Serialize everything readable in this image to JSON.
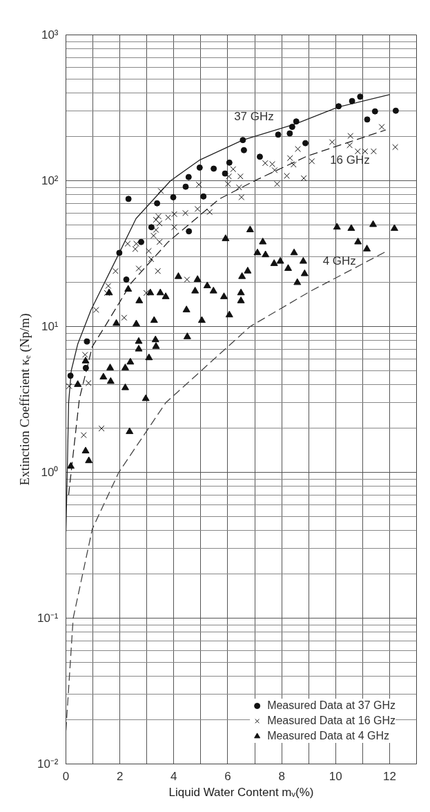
{
  "chart_data": {
    "type": "scatter",
    "xlabel": "Liquid Water Content mᵥ(%)",
    "ylabel": "Extinction Coefficient κₑ (Np/m)",
    "log": "y",
    "grid": true,
    "legend": "bottom right",
    "xlim": [
      0,
      13
    ],
    "xticks": [
      0,
      {
        "value": 1,
        "label": null
      },
      2,
      {
        "value": 3,
        "label": null
      },
      4,
      {
        "value": 5,
        "label": null
      },
      6,
      {
        "value": 7,
        "label": null
      },
      8,
      {
        "value": 9,
        "label": null
      },
      10,
      {
        "value": 11,
        "label": null
      },
      12,
      {
        "value": 13,
        "label": null
      }
    ],
    "ylim": [
      0.01,
      1000
    ],
    "yticks": [
      {
        "value": 0.01,
        "label": "10⁻²"
      },
      {
        "value": 0.1,
        "label": "10⁻¹"
      },
      {
        "value": 1,
        "label": "10⁰"
      },
      {
        "value": 10,
        "label": "10¹"
      },
      {
        "value": 100,
        "label": "10²"
      },
      {
        "value": 1000,
        "label": "10³"
      }
    ],
    "series": [
      {
        "name": "Measured Data at 37 GHz",
        "marker": "circle",
        "color": "#111111",
        "x": [
          6.56,
          6.6,
          6.06,
          7.19,
          7.87,
          8.3,
          8.39,
          8.54,
          8.88,
          10.11,
          10.61,
          10.91,
          11.17,
          11.46,
          12.23,
          4.96,
          5.48,
          5.9,
          4.55,
          4.44,
          5.1,
          3.98,
          3.38,
          2.32,
          3.17,
          4.56,
          2.79,
          1.98,
          2.24,
          0.78,
          0.74,
          0.17
        ],
        "values": [
          190,
          162,
          133,
          146,
          207,
          211,
          234,
          255,
          181,
          324,
          352,
          377,
          263,
          299,
          302,
          123,
          121,
          112,
          106,
          91,
          78,
          77,
          70,
          75,
          48,
          45,
          38,
          32,
          21,
          7.9,
          5.2,
          4.6
        ]
      },
      {
        "name": "Measured Data at 16 GHz",
        "marker": "cross",
        "color": "#111111",
        "x": [
          3.52,
          4.93,
          6.2,
          6.04,
          6.47,
          6.01,
          6.42,
          6.51,
          7.39,
          7.65,
          7.74,
          7.83,
          8.19,
          8.44,
          8.31,
          8.6,
          8.82,
          9.12,
          9.87,
          10.55,
          10.52,
          10.82,
          11.09,
          11.41,
          11.71,
          12.21,
          4.88,
          5.33,
          4.43,
          4.02,
          3.79,
          3.43,
          3.34,
          3.47,
          4.02,
          3.34,
          3.25,
          3.47,
          3.07,
          3.16,
          2.29,
          2.61,
          2.57,
          1.84,
          2.7,
          3.41,
          1.57,
          1.52,
          2.98,
          4.49,
          1.12,
          2.16,
          0.71,
          0.12,
          0.84,
          0.66,
          1.32
        ],
        "values": [
          85,
          94,
          120,
          107,
          107,
          95,
          90,
          77,
          132,
          130,
          118,
          95,
          108,
          129,
          143,
          165,
          104,
          136,
          184,
          203,
          175,
          159,
          159,
          159,
          234,
          170,
          64,
          61,
          60,
          59,
          56,
          57,
          54,
          51,
          48,
          46,
          42,
          38,
          33,
          29,
          37,
          37,
          34,
          24,
          25,
          24,
          19,
          17,
          17,
          21,
          13,
          11.5,
          6.4,
          3.9,
          4.1,
          1.8,
          2.0
        ]
      },
      {
        "name": "Measured Data at 4 GHz",
        "marker": "triangle",
        "color": "#111111",
        "x": [
          10.05,
          10.58,
          11.39,
          12.18,
          10.83,
          11.16,
          6.83,
          5.92,
          7.3,
          7.1,
          7.4,
          7.72,
          7.95,
          8.24,
          8.46,
          8.8,
          8.85,
          8.58,
          6.74,
          6.53,
          6.49,
          6.49,
          6.06,
          5.86,
          5.24,
          5.47,
          4.88,
          4.79,
          4.17,
          4.47,
          5.04,
          4.5,
          3.5,
          3.7,
          3.13,
          2.72,
          2.31,
          1.6,
          1.87,
          2.61,
          3.27,
          2.7,
          3.32,
          2.7,
          3.34,
          3.08,
          2.39,
          2.2,
          1.64,
          1.39,
          1.66,
          2.2,
          2.96,
          0.44,
          0.73,
          2.36,
          0.73,
          0.85,
          0.18
        ],
        "values": [
          48,
          47,
          50,
          47,
          38,
          34,
          46,
          40,
          38,
          32,
          31,
          27,
          28,
          25,
          32,
          28,
          23,
          20,
          24,
          22,
          17,
          15,
          12,
          16,
          19,
          17.5,
          21,
          17.5,
          22,
          13,
          11,
          8.5,
          17,
          16,
          17,
          15,
          18,
          17,
          10.5,
          10.4,
          11,
          7.9,
          8.1,
          7.0,
          7.3,
          6.1,
          5.7,
          5.2,
          5.2,
          4.5,
          4.2,
          3.8,
          3.2,
          4.0,
          5.8,
          1.9,
          1.4,
          1.2,
          1.1
        ]
      },
      {
        "name": "37 GHz",
        "type": "line",
        "line_style": "solid",
        "marker": "none",
        "color": "#222222",
        "x": [
          0,
          0.05,
          0.1,
          0.2,
          0.44,
          0.93,
          1.98,
          2.6,
          3.88,
          4.97,
          6.56,
          8.51,
          10.1,
          12.0
        ],
        "values": [
          0.39,
          1.0,
          3.0,
          5.0,
          7.6,
          13,
          32,
          55,
          100,
          139,
          190,
          245,
          320,
          390
        ]
      },
      {
        "name": "16 GHz",
        "type": "line",
        "line_style": "dashed",
        "marker": "none",
        "color": "#222222",
        "x": [
          0.1,
          0.3,
          0.5,
          0.98,
          1.43,
          2.43,
          3.79,
          5.69,
          7.05,
          8.96,
          11.86
        ],
        "values": [
          0.7,
          1.5,
          3.2,
          7.3,
          9.9,
          20,
          38,
          75,
          101,
          148,
          223
        ]
      },
      {
        "name": "4 GHz",
        "type": "line",
        "line_style": "dashed",
        "marker": "none",
        "color": "#444444",
        "x": [
          0,
          0.27,
          0.98,
          1.96,
          3.7,
          6.83,
          9.05,
          11.91
        ],
        "values": [
          0.017,
          0.1,
          0.41,
          1.0,
          3.0,
          10,
          17.4,
          33
        ]
      }
    ]
  }
}
